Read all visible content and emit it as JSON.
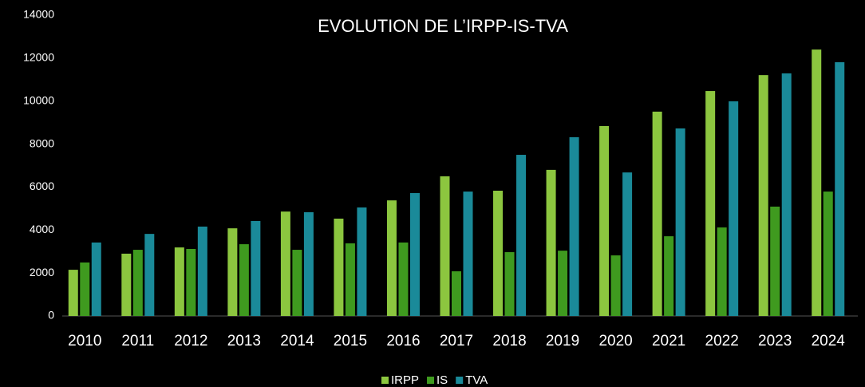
{
  "chart_data": {
    "type": "bar",
    "title": "EVOLUTION DE L’IRPP-IS-TVA",
    "categories": [
      "2010",
      "2011",
      "2012",
      "2013",
      "2014",
      "2015",
      "2016",
      "2017",
      "2018",
      "2019",
      "2020",
      "2021",
      "2022",
      "2023",
      "2024"
    ],
    "series": [
      {
        "name": "IRPP",
        "color": "#8cc63f",
        "values": [
          2150,
          2900,
          3190,
          4080,
          4860,
          4530,
          5380,
          6500,
          5830,
          6800,
          8840,
          9510,
          10470,
          11210,
          12400
        ]
      },
      {
        "name": "IS",
        "color": "#3f9a1f",
        "values": [
          2490,
          3080,
          3120,
          3340,
          3080,
          3380,
          3420,
          2080,
          2970,
          3040,
          2820,
          3710,
          4120,
          5090,
          5790
        ]
      },
      {
        "name": "TVA",
        "color": "#1a8a99",
        "values": [
          3420,
          3820,
          4160,
          4420,
          4830,
          5050,
          5720,
          5790,
          7500,
          8320,
          6680,
          8730,
          9990,
          11290,
          11810
        ]
      }
    ],
    "ylim": [
      0,
      14000
    ],
    "yticks": [
      0,
      2000,
      4000,
      6000,
      8000,
      10000,
      12000,
      14000
    ],
    "legend": "bottom"
  }
}
